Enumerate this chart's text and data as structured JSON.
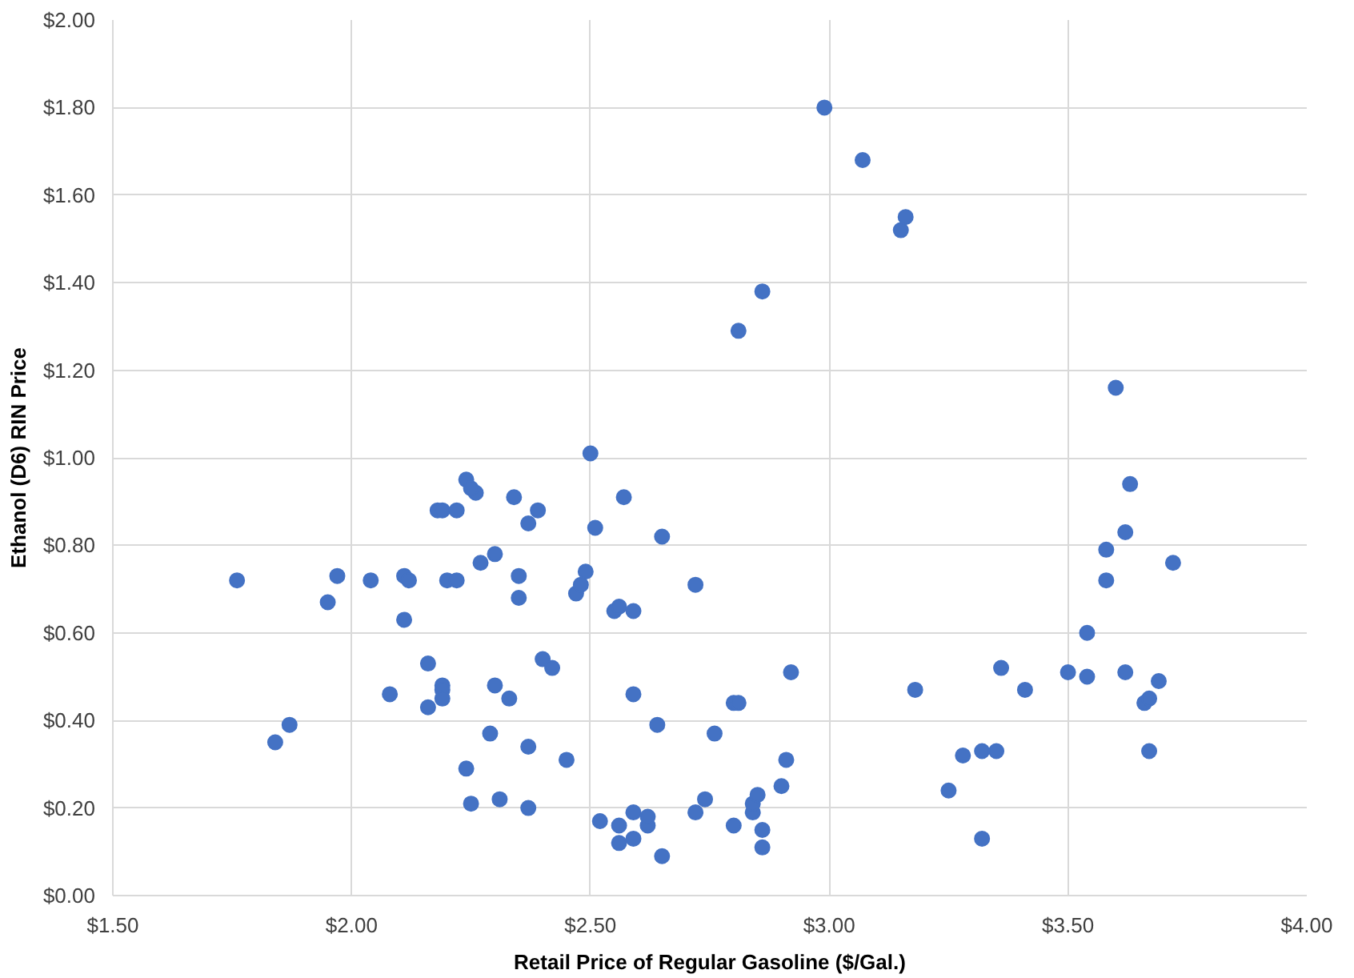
{
  "chart_data": {
    "type": "scatter",
    "xlabel": "Retail Price of Regular Gasoline ($/Gal.)",
    "ylabel": "Ethanol (D6) RIN Price",
    "xlim": [
      1.5,
      4.0
    ],
    "ylim": [
      0,
      2.0
    ],
    "xticks": [
      {
        "value": 1.5,
        "label": "$1.50"
      },
      {
        "value": 2.0,
        "label": "$2.00"
      },
      {
        "value": 2.5,
        "label": "$2.50"
      },
      {
        "value": 3.0,
        "label": "$3.00"
      },
      {
        "value": 3.5,
        "label": "$3.50"
      },
      {
        "value": 4.0,
        "label": "$4.00"
      }
    ],
    "yticks": [
      {
        "value": 0,
        "label": "$0.00"
      },
      {
        "value": 0.2,
        "label": "$0.20"
      },
      {
        "value": 0.4,
        "label": "$0.40"
      },
      {
        "value": 0.6,
        "label": "$0.60"
      },
      {
        "value": 0.8,
        "label": "$0.80"
      },
      {
        "value": 1.0,
        "label": "$1.00"
      },
      {
        "value": 1.2,
        "label": "$1.20"
      },
      {
        "value": 1.4,
        "label": "$1.40"
      },
      {
        "value": 1.6,
        "label": "$1.60"
      },
      {
        "value": 1.8,
        "label": "$1.80"
      },
      {
        "value": 2.0,
        "label": "$2.00"
      }
    ],
    "grid": true,
    "marker": "circle",
    "series": [
      {
        "color": "#4472c4",
        "x": [
          1.76,
          1.84,
          1.87,
          1.95,
          1.97,
          2.04,
          2.08,
          2.11,
          2.11,
          2.12,
          2.16,
          2.16,
          2.19,
          2.19,
          2.19,
          2.18,
          2.19,
          2.2,
          2.22,
          2.22,
          2.24,
          2.24,
          2.26,
          2.25,
          2.25,
          2.27,
          2.3,
          2.29,
          2.3,
          2.31,
          2.33,
          2.34,
          2.35,
          2.35,
          2.37,
          2.37,
          2.37,
          2.39,
          2.4,
          2.42,
          2.45,
          2.47,
          2.48,
          2.49,
          2.5,
          2.51,
          2.52,
          2.55,
          2.56,
          2.57,
          2.56,
          2.56,
          2.59,
          2.59,
          2.59,
          2.59,
          2.62,
          2.62,
          2.64,
          2.65,
          2.65,
          2.72,
          2.72,
          2.74,
          2.76,
          2.8,
          2.81,
          2.8,
          2.81,
          2.84,
          2.84,
          2.85,
          2.86,
          2.86,
          2.86,
          2.9,
          2.91,
          2.92,
          2.99,
          3.07,
          3.15,
          3.16,
          3.18,
          3.25,
          3.28,
          3.32,
          3.32,
          3.35,
          3.36,
          3.41,
          3.5,
          3.54,
          3.54,
          3.58,
          3.58,
          3.6,
          3.62,
          3.62,
          3.63,
          3.66,
          3.67,
          3.67,
          3.69,
          3.72
        ],
        "values": [
          0.72,
          0.35,
          0.39,
          0.67,
          0.73,
          0.72,
          0.46,
          0.63,
          0.73,
          0.72,
          0.53,
          0.43,
          0.48,
          0.47,
          0.45,
          0.88,
          0.88,
          0.72,
          0.72,
          0.88,
          0.29,
          0.95,
          0.92,
          0.93,
          0.21,
          0.76,
          0.78,
          0.37,
          0.48,
          0.22,
          0.45,
          0.91,
          0.73,
          0.68,
          0.85,
          0.34,
          0.2,
          0.88,
          0.54,
          0.52,
          0.31,
          0.69,
          0.71,
          0.74,
          1.01,
          0.84,
          0.17,
          0.65,
          0.66,
          0.91,
          0.16,
          0.12,
          0.65,
          0.46,
          0.19,
          0.13,
          0.16,
          0.18,
          0.39,
          0.82,
          0.09,
          0.71,
          0.19,
          0.22,
          0.37,
          0.44,
          0.44,
          0.16,
          1.29,
          0.19,
          0.21,
          0.23,
          1.38,
          0.15,
          0.11,
          0.25,
          0.31,
          0.51,
          1.8,
          1.68,
          1.52,
          1.55,
          0.47,
          0.24,
          0.32,
          0.33,
          0.13,
          0.33,
          0.52,
          0.47,
          0.51,
          0.5,
          0.6,
          0.72,
          0.79,
          1.16,
          0.51,
          0.83,
          0.94,
          0.44,
          0.45,
          0.33,
          0.49,
          0.76
        ]
      }
    ]
  }
}
